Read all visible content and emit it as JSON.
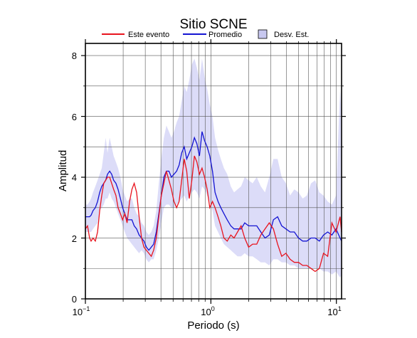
{
  "chart_data": {
    "type": "line",
    "title": "Sitio SCNE",
    "xlabel": "Periodo (s)",
    "ylabel": "Amplitud",
    "x_scale": "log",
    "xlim": [
      0.1,
      11
    ],
    "ylim": [
      0,
      8.4
    ],
    "grid": true,
    "legend_position": "top",
    "x_ticks": [
      {
        "base": "10",
        "exp": "−1"
      },
      {
        "base": "10",
        "exp": "0"
      },
      {
        "base": "10",
        "exp": "1"
      }
    ],
    "y_ticks": [
      "0",
      "2",
      "4",
      "6",
      "8"
    ],
    "legend": {
      "event": "Este evento",
      "mean": "Promedio",
      "std": "Desv. Est."
    },
    "colors": {
      "event": "#e8141e",
      "mean": "#1414d2",
      "std_fill": "#dcdcf8",
      "std_legend_fill": "#c8c8f0"
    },
    "series": [
      {
        "name": "Este evento",
        "x": [
          0.1,
          0.104,
          0.108,
          0.111,
          0.115,
          0.12,
          0.125,
          0.13,
          0.135,
          0.14,
          0.145,
          0.15,
          0.156,
          0.162,
          0.168,
          0.175,
          0.182,
          0.19,
          0.198,
          0.206,
          0.215,
          0.225,
          0.235,
          0.245,
          0.256,
          0.268,
          0.28,
          0.293,
          0.306,
          0.32,
          0.335,
          0.35,
          0.367,
          0.385,
          0.403,
          0.422,
          0.442,
          0.463,
          0.485,
          0.508,
          0.533,
          0.558,
          0.585,
          0.613,
          0.642,
          0.673,
          0.705,
          0.739,
          0.774,
          0.811,
          0.85,
          0.891,
          0.934,
          0.98,
          1.03,
          1.08,
          1.14,
          1.2,
          1.27,
          1.35,
          1.44,
          1.53,
          1.63,
          1.74,
          1.86,
          2.0,
          2.15,
          2.32,
          2.5,
          2.7,
          2.92,
          3.15,
          3.4,
          3.67,
          3.96,
          4.28,
          4.62,
          4.99,
          5.39,
          5.82,
          6.28,
          6.78,
          7.32,
          7.9,
          8.53,
          9.21,
          9.94,
          10.7,
          11.0
        ],
        "values": [
          2.3,
          2.4,
          2.0,
          1.9,
          2.0,
          1.9,
          2.2,
          2.9,
          3.4,
          3.8,
          3.9,
          4.0,
          4.0,
          3.8,
          3.6,
          3.4,
          3.0,
          2.8,
          2.6,
          2.8,
          2.5,
          3.2,
          3.6,
          3.8,
          3.5,
          2.7,
          2.0,
          1.7,
          1.6,
          1.5,
          1.4,
          1.6,
          2.0,
          2.7,
          3.4,
          3.8,
          4.2,
          3.9,
          3.6,
          3.2,
          3.0,
          3.2,
          3.9,
          4.6,
          4.2,
          3.3,
          3.9,
          4.7,
          4.5,
          4.1,
          4.3,
          4.0,
          3.6,
          3.0,
          3.2,
          3.0,
          2.7,
          2.4,
          2.0,
          1.9,
          2.1,
          2.0,
          2.2,
          2.4,
          2.0,
          1.7,
          1.8,
          1.8,
          2.1,
          2.3,
          2.5,
          2.3,
          1.8,
          1.4,
          1.5,
          1.3,
          1.2,
          1.2,
          1.1,
          1.1,
          1.0,
          0.9,
          1.0,
          1.5,
          1.4,
          2.5,
          2.2,
          2.7,
          2.2
        ]
      },
      {
        "name": "Promedio",
        "x": [
          0.1,
          0.104,
          0.108,
          0.111,
          0.115,
          0.12,
          0.125,
          0.13,
          0.135,
          0.14,
          0.145,
          0.15,
          0.156,
          0.162,
          0.168,
          0.175,
          0.182,
          0.19,
          0.198,
          0.206,
          0.215,
          0.225,
          0.235,
          0.245,
          0.256,
          0.268,
          0.28,
          0.293,
          0.306,
          0.32,
          0.335,
          0.35,
          0.367,
          0.385,
          0.403,
          0.422,
          0.442,
          0.463,
          0.485,
          0.508,
          0.533,
          0.558,
          0.585,
          0.613,
          0.642,
          0.673,
          0.705,
          0.739,
          0.774,
          0.811,
          0.85,
          0.891,
          0.934,
          0.98,
          1.03,
          1.08,
          1.14,
          1.2,
          1.27,
          1.35,
          1.44,
          1.53,
          1.63,
          1.74,
          1.86,
          2.0,
          2.15,
          2.32,
          2.5,
          2.7,
          2.92,
          3.15,
          3.4,
          3.67,
          3.96,
          4.28,
          4.62,
          4.99,
          5.39,
          5.82,
          6.28,
          6.78,
          7.32,
          7.9,
          8.53,
          9.21,
          9.94,
          10.7,
          11.0
        ],
        "values": [
          2.7,
          2.7,
          2.7,
          2.75,
          2.9,
          3.0,
          3.2,
          3.5,
          3.7,
          3.8,
          3.9,
          4.1,
          4.2,
          4.1,
          3.9,
          3.8,
          3.6,
          3.3,
          3.0,
          2.8,
          2.6,
          2.6,
          2.6,
          2.4,
          2.3,
          2.1,
          2.0,
          1.9,
          1.7,
          1.6,
          1.7,
          1.8,
          2.2,
          2.8,
          3.4,
          4.0,
          4.2,
          4.2,
          4.0,
          4.1,
          4.2,
          4.4,
          4.8,
          5.0,
          4.6,
          4.8,
          5.0,
          5.3,
          5.1,
          4.7,
          5.5,
          5.2,
          5.0,
          4.7,
          4.2,
          3.5,
          3.2,
          3.0,
          2.8,
          2.6,
          2.4,
          2.3,
          2.3,
          2.3,
          2.5,
          2.4,
          2.4,
          2.4,
          2.2,
          2.0,
          2.1,
          2.6,
          2.7,
          2.4,
          2.3,
          2.2,
          2.2,
          2.0,
          1.9,
          1.9,
          2.0,
          2.0,
          1.9,
          2.1,
          2.2,
          2.1,
          2.3,
          2.0,
          1.9
        ]
      },
      {
        "name": "Desv. Est.",
        "x": [
          0.1,
          0.104,
          0.108,
          0.111,
          0.115,
          0.12,
          0.125,
          0.13,
          0.135,
          0.14,
          0.145,
          0.15,
          0.156,
          0.162,
          0.168,
          0.175,
          0.182,
          0.19,
          0.198,
          0.206,
          0.215,
          0.225,
          0.235,
          0.245,
          0.256,
          0.268,
          0.28,
          0.293,
          0.306,
          0.32,
          0.335,
          0.35,
          0.367,
          0.385,
          0.403,
          0.422,
          0.442,
          0.463,
          0.485,
          0.508,
          0.533,
          0.558,
          0.585,
          0.613,
          0.642,
          0.673,
          0.705,
          0.739,
          0.774,
          0.811,
          0.85,
          0.891,
          0.934,
          0.98,
          1.03,
          1.08,
          1.14,
          1.2,
          1.27,
          1.35,
          1.44,
          1.53,
          1.63,
          1.74,
          1.86,
          2.0,
          2.15,
          2.32,
          2.5,
          2.7,
          2.92,
          3.15,
          3.4,
          3.67,
          3.96,
          4.28,
          4.62,
          4.99,
          5.39,
          5.82,
          6.28,
          6.78,
          7.32,
          7.9,
          8.53,
          9.21,
          9.94,
          10.7,
          11.0
        ],
        "upper": [
          3.1,
          3.1,
          3.2,
          3.3,
          3.5,
          3.7,
          3.9,
          4.1,
          4.3,
          4.8,
          5.3,
          4.8,
          5.3,
          5.0,
          4.7,
          4.5,
          4.3,
          4.0,
          3.6,
          3.4,
          3.2,
          3.3,
          3.3,
          3.0,
          2.8,
          2.7,
          2.5,
          2.4,
          2.2,
          2.1,
          2.2,
          2.4,
          2.9,
          3.8,
          4.6,
          5.3,
          5.7,
          5.5,
          5.3,
          5.5,
          5.8,
          6.0,
          6.5,
          7.0,
          6.8,
          7.2,
          7.7,
          7.9,
          7.6,
          7.2,
          7.9,
          7.3,
          6.9,
          6.4,
          6.0,
          5.3,
          4.9,
          4.6,
          4.3,
          4.1,
          3.7,
          3.5,
          3.6,
          3.7,
          4.0,
          3.9,
          3.8,
          4.0,
          3.7,
          3.5,
          4.0,
          4.6,
          4.6,
          4.0,
          3.8,
          3.4,
          3.6,
          3.5,
          3.3,
          3.4,
          3.8,
          3.9,
          3.5,
          3.4,
          3.2,
          3.1,
          3.4,
          6.9,
          6.0
        ],
        "lower": [
          2.2,
          2.2,
          2.2,
          2.2,
          2.3,
          2.4,
          2.5,
          2.9,
          3.0,
          3.1,
          3.3,
          3.3,
          3.5,
          3.3,
          3.2,
          3.0,
          2.8,
          2.6,
          2.4,
          2.2,
          2.0,
          1.9,
          1.8,
          1.7,
          1.6,
          1.5,
          1.6,
          1.5,
          1.3,
          1.2,
          1.3,
          1.3,
          1.6,
          2.0,
          2.5,
          3.0,
          3.1,
          3.1,
          3.0,
          3.0,
          3.1,
          3.2,
          3.3,
          3.4,
          3.2,
          3.4,
          3.5,
          3.6,
          3.5,
          3.3,
          3.7,
          3.6,
          3.4,
          3.2,
          2.9,
          2.4,
          2.2,
          2.0,
          1.8,
          1.7,
          1.6,
          1.5,
          1.4,
          1.4,
          1.5,
          1.4,
          1.4,
          1.3,
          1.2,
          1.2,
          1.1,
          1.3,
          1.3,
          1.2,
          1.2,
          1.1,
          1.1,
          1.0,
          1.0,
          1.0,
          1.0,
          1.0,
          1.0,
          0.9,
          0.9,
          0.8,
          0.9,
          0.7,
          0.8
        ]
      }
    ]
  }
}
